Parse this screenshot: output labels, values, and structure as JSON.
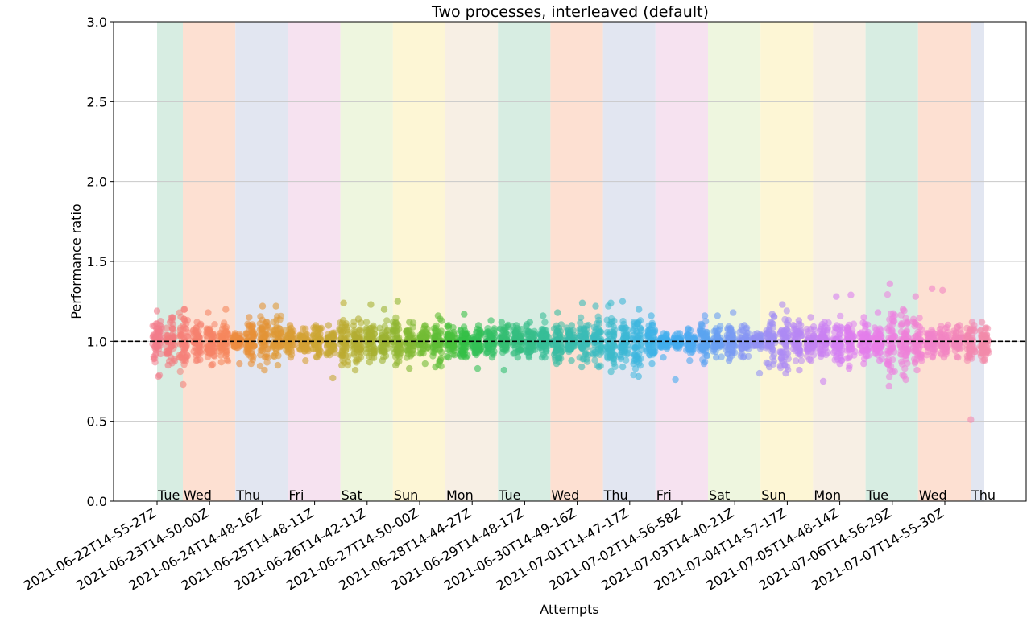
{
  "chart_data": {
    "type": "scatter",
    "title": "Two processes, interleaved (default)",
    "xlabel": "Attempts",
    "ylabel": "Performance ratio",
    "ylim": [
      0,
      3.0
    ],
    "yticks": [
      "0.0",
      "0.5",
      "1.0",
      "1.5",
      "2.0",
      "2.5",
      "3.0"
    ],
    "reference_line": {
      "y": 1.0,
      "style": "dashed",
      "color": "#000000"
    },
    "grid": "horizontal",
    "x_tick_labels": [
      "2021-06-22T14-55-27Z",
      "2021-06-23T14-50-00Z",
      "2021-06-24T14-48-16Z",
      "2021-06-25T14-48-11Z",
      "2021-06-26T14-42-11Z",
      "2021-06-27T14-50-00Z",
      "2021-06-28T14-44-27Z",
      "2021-06-29T14-48-17Z",
      "2021-06-30T14-49-16Z",
      "2021-07-01T14-47-17Z",
      "2021-07-02T14-56-58Z",
      "2021-07-03T14-40-21Z",
      "2021-07-04T14-57-17Z",
      "2021-07-05T14-48-14Z",
      "2021-07-06T14-56-29Z",
      "2021-07-07T14-55-30Z"
    ],
    "day_bands": [
      {
        "label": "Tue",
        "color": "#d7ede2"
      },
      {
        "label": "Wed",
        "color": "#fde0d2"
      },
      {
        "label": "Thu",
        "color": "#e2e6f1"
      },
      {
        "label": "Fri",
        "color": "#f6e2f0"
      },
      {
        "label": "Sat",
        "color": "#eef6df"
      },
      {
        "label": "Sun",
        "color": "#fdf6d5"
      },
      {
        "label": "Mon",
        "color": "#f7efe4"
      },
      {
        "label": "Tue",
        "color": "#d7ede2"
      },
      {
        "label": "Wed",
        "color": "#fde0d2"
      },
      {
        "label": "Thu",
        "color": "#e2e6f1"
      },
      {
        "label": "Fri",
        "color": "#f6e2f0"
      },
      {
        "label": "Sat",
        "color": "#eef6df"
      },
      {
        "label": "Sun",
        "color": "#fdf6d5"
      },
      {
        "label": "Mon",
        "color": "#f7efe4"
      },
      {
        "label": "Tue",
        "color": "#d7ede2"
      },
      {
        "label": "Wed",
        "color": "#fde0d2"
      },
      {
        "label": "Thu",
        "color": "#e2e6f1"
      }
    ],
    "attempt_columns": [
      {
        "spread": [
          0.78,
          1.19
        ],
        "color": "#f27c8a"
      },
      {
        "spread": [
          0.85,
          1.15
        ],
        "color": "#f27c80"
      },
      {
        "spread": [
          0.73,
          1.2
        ],
        "color": "#f57f78"
      },
      {
        "spread": [
          0.88,
          1.12
        ],
        "color": "#f5826f"
      },
      {
        "spread": [
          0.85,
          1.18
        ],
        "color": "#f58466"
      },
      {
        "spread": [
          0.87,
          1.2
        ],
        "color": "#f5875c"
      },
      {
        "spread": [
          0.86,
          1.05
        ],
        "color": "#ec8c40"
      },
      {
        "spread": [
          0.86,
          1.15
        ],
        "color": "#e88f38"
      },
      {
        "spread": [
          0.82,
          1.22
        ],
        "color": "#e49436"
      },
      {
        "spread": [
          0.85,
          1.22
        ],
        "color": "#df9935"
      },
      {
        "spread": [
          0.9,
          1.1
        ],
        "color": "#d99d34"
      },
      {
        "spread": [
          0.88,
          1.08
        ],
        "color": "#d3a234"
      },
      {
        "spread": [
          0.9,
          1.1
        ],
        "color": "#cca533"
      },
      {
        "spread": [
          0.77,
          1.1
        ],
        "color": "#c4a833"
      },
      {
        "spread": [
          0.85,
          1.24
        ],
        "color": "#bcab32"
      },
      {
        "spread": [
          0.82,
          1.14
        ],
        "color": "#b3ad32"
      },
      {
        "spread": [
          0.87,
          1.23
        ],
        "color": "#a8b032"
      },
      {
        "spread": [
          0.88,
          1.2
        ],
        "color": "#9db333"
      },
      {
        "spread": [
          0.85,
          1.25
        ],
        "color": "#90b633"
      },
      {
        "spread": [
          0.83,
          1.12
        ],
        "color": "#82b833"
      },
      {
        "spread": [
          0.86,
          1.1
        ],
        "color": "#72bb34"
      },
      {
        "spread": [
          0.84,
          1.16
        ],
        "color": "#5fbd36"
      },
      {
        "spread": [
          0.9,
          1.1
        ],
        "color": "#48bf3c"
      },
      {
        "spread": [
          0.9,
          1.17
        ],
        "color": "#35c047"
      },
      {
        "spread": [
          0.83,
          1.1
        ],
        "color": "#33c056"
      },
      {
        "spread": [
          0.9,
          1.13
        ],
        "color": "#33bf65"
      },
      {
        "spread": [
          0.82,
          1.12
        ],
        "color": "#34be72"
      },
      {
        "spread": [
          0.9,
          1.1
        ],
        "color": "#35be7f"
      },
      {
        "spread": [
          0.9,
          1.12
        ],
        "color": "#36bd8b"
      },
      {
        "spread": [
          0.9,
          1.16
        ],
        "color": "#37bd97"
      },
      {
        "spread": [
          0.86,
          1.18
        ],
        "color": "#38bca2"
      },
      {
        "spread": [
          0.88,
          1.1
        ],
        "color": "#39bcac"
      },
      {
        "spread": [
          0.84,
          1.24
        ],
        "color": "#3abbb7"
      },
      {
        "spread": [
          0.84,
          1.22
        ],
        "color": "#3bbbc1"
      },
      {
        "spread": [
          0.81,
          1.24
        ],
        "color": "#3cbacb"
      },
      {
        "spread": [
          0.84,
          1.25
        ],
        "color": "#3db8d5"
      },
      {
        "spread": [
          0.78,
          1.2
        ],
        "color": "#3eb6de"
      },
      {
        "spread": [
          0.86,
          1.16
        ],
        "color": "#3fb3e6"
      },
      {
        "spread": [
          0.9,
          1.05
        ],
        "color": "#42afec"
      },
      {
        "spread": [
          0.76,
          1.05
        ],
        "color": "#46acef"
      },
      {
        "spread": [
          0.88,
          1.08
        ],
        "color": "#4ea9f0"
      },
      {
        "spread": [
          0.86,
          1.16
        ],
        "color": "#5ba4f1"
      },
      {
        "spread": [
          0.9,
          1.16
        ],
        "color": "#699ff2"
      },
      {
        "spread": [
          0.88,
          1.18
        ],
        "color": "#789af3"
      },
      {
        "spread": [
          0.9,
          1.1
        ],
        "color": "#8696f4"
      },
      {
        "spread": [
          0.8,
          1.05
        ],
        "color": "#9492f4"
      },
      {
        "spread": [
          0.84,
          1.17
        ],
        "color": "#a18ef4"
      },
      {
        "spread": [
          0.8,
          1.23
        ],
        "color": "#ad8af4"
      },
      {
        "spread": [
          0.82,
          1.13
        ],
        "color": "#b887f4"
      },
      {
        "spread": [
          0.88,
          1.15
        ],
        "color": "#c284f3"
      },
      {
        "spread": [
          0.75,
          1.12
        ],
        "color": "#cb81f3"
      },
      {
        "spread": [
          0.86,
          1.28
        ],
        "color": "#d47ff2"
      },
      {
        "spread": [
          0.83,
          1.29
        ],
        "color": "#dc7eef"
      },
      {
        "spread": [
          0.86,
          1.15
        ],
        "color": "#e37eeb"
      },
      {
        "spread": [
          0.88,
          1.18
        ],
        "color": "#e97ee7"
      },
      {
        "spread": [
          0.72,
          1.36
        ],
        "color": "#ec7fe0"
      },
      {
        "spread": [
          0.76,
          1.2
        ],
        "color": "#ee80d9"
      },
      {
        "spread": [
          0.82,
          1.28
        ],
        "color": "#f081d2"
      },
      {
        "spread": [
          0.9,
          1.33
        ],
        "color": "#f183ca"
      },
      {
        "spread": [
          0.9,
          1.32
        ],
        "color": "#f285c2"
      },
      {
        "spread": [
          0.9,
          1.1
        ],
        "color": "#f287ba"
      },
      {
        "spread": [
          0.51,
          1.12
        ],
        "color": "#f289b1"
      },
      {
        "spread": [
          0.88,
          1.12
        ],
        "color": "#f28ba9"
      }
    ]
  }
}
